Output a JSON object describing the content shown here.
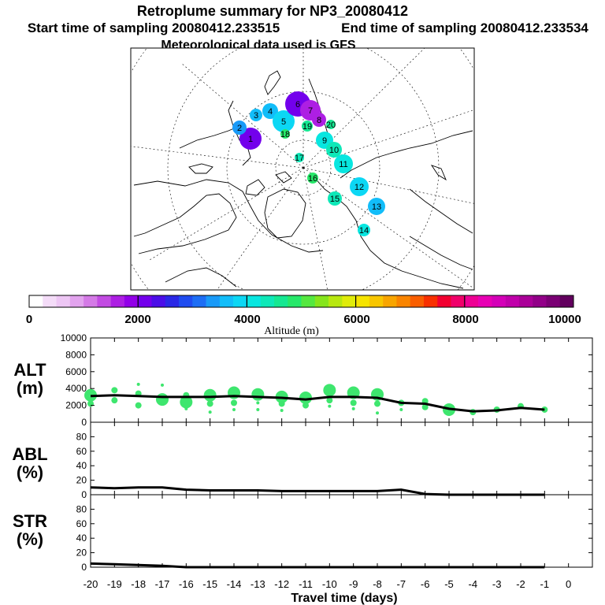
{
  "chart_data": [
    {
      "type": "map",
      "title": "Retroplume summary for NP3_20080412",
      "start_label": "Start time of sampling 20080412.233515",
      "end_label": "End time of sampling 20080412.233534",
      "met_label": "Meteorological data used is GFS",
      "projection": "north polar stereographic",
      "clusters": [
        {
          "label": "1",
          "altitude": 2200
        },
        {
          "label": "2",
          "altitude": 3400
        },
        {
          "label": "3",
          "altitude": 3600
        },
        {
          "label": "4",
          "altitude": 3700
        },
        {
          "label": "5",
          "altitude": 3900
        },
        {
          "label": "6",
          "altitude": 2100
        },
        {
          "label": "7",
          "altitude": 1700
        },
        {
          "label": "8",
          "altitude": 1500
        },
        {
          "label": "9",
          "altitude": 4200
        },
        {
          "label": "10",
          "altitude": 4300
        },
        {
          "label": "11",
          "altitude": 4000
        },
        {
          "label": "12",
          "altitude": 3800
        },
        {
          "label": "13",
          "altitude": 3700
        },
        {
          "label": "14",
          "altitude": 4100
        },
        {
          "label": "15",
          "altitude": 4400
        },
        {
          "label": "16",
          "altitude": 4800
        },
        {
          "label": "17",
          "altitude": 4300
        },
        {
          "label": "18",
          "altitude": 4800
        },
        {
          "label": "19",
          "altitude": 4500
        },
        {
          "label": "20",
          "altitude": 4500
        }
      ]
    },
    {
      "type": "colorbar",
      "label": "Altitude (m)",
      "range": [
        0,
        10000
      ],
      "tick_labels": [
        "0",
        "2000",
        "4000",
        "6000",
        "8000",
        "10000"
      ]
    },
    {
      "type": "line+scatter",
      "panel_label_1": "ALT",
      "panel_label_2": "(m)",
      "x": [
        -20,
        -19,
        -18,
        -17,
        -16,
        -15,
        -14,
        -13,
        -12,
        -11,
        -10,
        -9,
        -8,
        -7,
        -6,
        -5,
        -4,
        -3,
        -2,
        -1
      ],
      "ylim": [
        0,
        10000
      ],
      "yticks": [
        "0",
        "2000",
        "4000",
        "6000",
        "8000",
        "10000"
      ],
      "mean_line": [
        3100,
        3200,
        3100,
        3000,
        3000,
        3000,
        3100,
        3000,
        2900,
        2700,
        3000,
        3000,
        2900,
        2300,
        2200,
        1600,
        1300,
        1400,
        1700,
        1500
      ],
      "cluster_points": [
        [
          -20,
          3200,
          2
        ],
        [
          -20,
          2200,
          1
        ],
        [
          -19,
          3800,
          1
        ],
        [
          -19,
          2600,
          1
        ],
        [
          -18,
          4500,
          0
        ],
        [
          -18,
          3400,
          1
        ],
        [
          -18,
          2000,
          1
        ],
        [
          -17,
          4400,
          0
        ],
        [
          -17,
          2700,
          2
        ],
        [
          -16,
          2400,
          2
        ],
        [
          -16,
          3200,
          1
        ],
        [
          -16,
          1600,
          0
        ],
        [
          -15,
          3200,
          2
        ],
        [
          -15,
          2200,
          1
        ],
        [
          -15,
          1200,
          0
        ],
        [
          -14,
          3500,
          2
        ],
        [
          -14,
          2300,
          1
        ],
        [
          -14,
          1500,
          0
        ],
        [
          -13,
          3300,
          2
        ],
        [
          -13,
          2300,
          0
        ],
        [
          -13,
          1500,
          0
        ],
        [
          -12,
          3000,
          2
        ],
        [
          -12,
          2200,
          1
        ],
        [
          -12,
          1400,
          0
        ],
        [
          -11,
          2900,
          2
        ],
        [
          -11,
          2000,
          1
        ],
        [
          -10,
          3800,
          2
        ],
        [
          -10,
          2600,
          1
        ],
        [
          -10,
          1900,
          0
        ],
        [
          -9,
          3500,
          2
        ],
        [
          -9,
          2300,
          1
        ],
        [
          -9,
          1600,
          0
        ],
        [
          -8,
          3300,
          2
        ],
        [
          -8,
          2200,
          1
        ],
        [
          -8,
          1100,
          0
        ],
        [
          -7,
          2300,
          1
        ],
        [
          -7,
          1500,
          0
        ],
        [
          -6,
          2500,
          1
        ],
        [
          -6,
          1800,
          1
        ],
        [
          -5,
          1500,
          2
        ],
        [
          -4,
          1200,
          1
        ],
        [
          -3,
          1500,
          1
        ],
        [
          -2,
          1900,
          1
        ],
        [
          -1,
          1500,
          1
        ]
      ]
    },
    {
      "type": "line",
      "panel_label_1": "ABL",
      "panel_label_2": "(%)",
      "ylim": [
        0,
        100
      ],
      "yticks": [
        "0",
        "20",
        "40",
        "60",
        "80"
      ],
      "x": [
        -20,
        -19,
        -18,
        -17,
        -16,
        -15,
        -14,
        -13,
        -12,
        -11,
        -10,
        -9,
        -8,
        -7,
        -6,
        -5,
        -4,
        -3,
        -2,
        -1
      ],
      "values": [
        10,
        9,
        10,
        10,
        7,
        6,
        6,
        6,
        5,
        5,
        5,
        5,
        5,
        7,
        1,
        0,
        0,
        0,
        0,
        0
      ]
    },
    {
      "type": "line",
      "panel_label_1": "STR",
      "panel_label_2": "(%)",
      "ylim": [
        0,
        100
      ],
      "yticks": [
        "0",
        "20",
        "40",
        "60",
        "80"
      ],
      "x": [
        -20,
        -19,
        -18,
        -17,
        -16,
        -15,
        -14,
        -13,
        -12,
        -11,
        -10,
        -9,
        -8,
        -7,
        -6,
        -5,
        -4,
        -3,
        -2,
        -1
      ],
      "values": [
        5,
        4,
        3,
        2,
        0,
        0,
        0,
        0,
        0,
        0,
        0,
        0,
        0,
        0,
        0,
        0,
        0,
        0,
        0,
        0
      ]
    },
    {
      "type": "axis",
      "xlabel": "Travel time (days)",
      "xticks": [
        "-20",
        "-19",
        "-18",
        "-17",
        "-16",
        "-15",
        "-14",
        "-13",
        "-12",
        "-11",
        "-10",
        "-9",
        "-8",
        "-7",
        "-6",
        "-5",
        "-4",
        "-3",
        "-2",
        "-1",
        "0"
      ]
    }
  ]
}
